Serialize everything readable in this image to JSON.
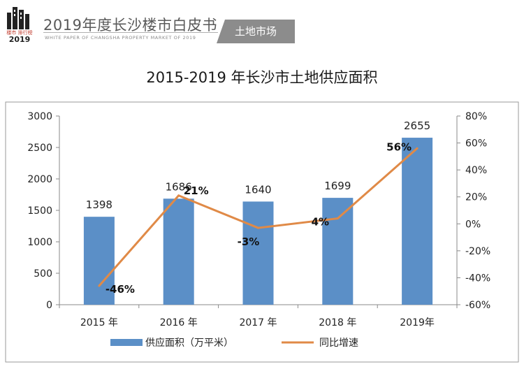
{
  "header": {
    "logo_text": "楼市 排行榜",
    "logo_year": "2019",
    "title": "2019年度长沙楼市白皮书",
    "subtitle": "WHITE PAPER OF CHANGSHA PROPERTY MARKET OF 2019",
    "section_tag": "土地市场"
  },
  "colors": {
    "bar": "#5b8fc7",
    "line": "#e08a47",
    "panel_border": "#9a9a9a",
    "header_gray": "#8c8c8c"
  },
  "chart_data": {
    "type": "bar",
    "title": "2015-2019 年长沙市土地供应面积",
    "categories": [
      "2015 年",
      "2016 年",
      "2017 年",
      "2018 年",
      "2019年"
    ],
    "series": [
      {
        "name": "供应面积（万平米）",
        "type": "bar",
        "axis": "left",
        "values": [
          1398,
          1686,
          1640,
          1699,
          2655
        ],
        "labels": [
          "1398",
          "1686",
          "1640",
          "1699",
          "2655"
        ]
      },
      {
        "name": "同比增速",
        "type": "line",
        "axis": "right",
        "values": [
          -46,
          21,
          -3,
          4,
          56
        ],
        "labels": [
          "-46%",
          "21%",
          "-3%",
          "4%",
          "56%"
        ]
      }
    ],
    "y_left": {
      "min": 0,
      "max": 3000,
      "ticks": [
        0,
        500,
        1000,
        1500,
        2000,
        2500,
        3000
      ],
      "tick_labels": [
        "0",
        "500",
        "1000",
        "1500",
        "2000",
        "2500",
        "3000"
      ]
    },
    "y_right": {
      "min": -60,
      "max": 80,
      "ticks": [
        -60,
        -40,
        -20,
        0,
        20,
        40,
        60,
        80
      ],
      "tick_labels": [
        "-60%",
        "-40%",
        "-20%",
        "0%",
        "20%",
        "40%",
        "60%",
        "80%"
      ]
    },
    "grid": false,
    "legend_position": "bottom"
  }
}
